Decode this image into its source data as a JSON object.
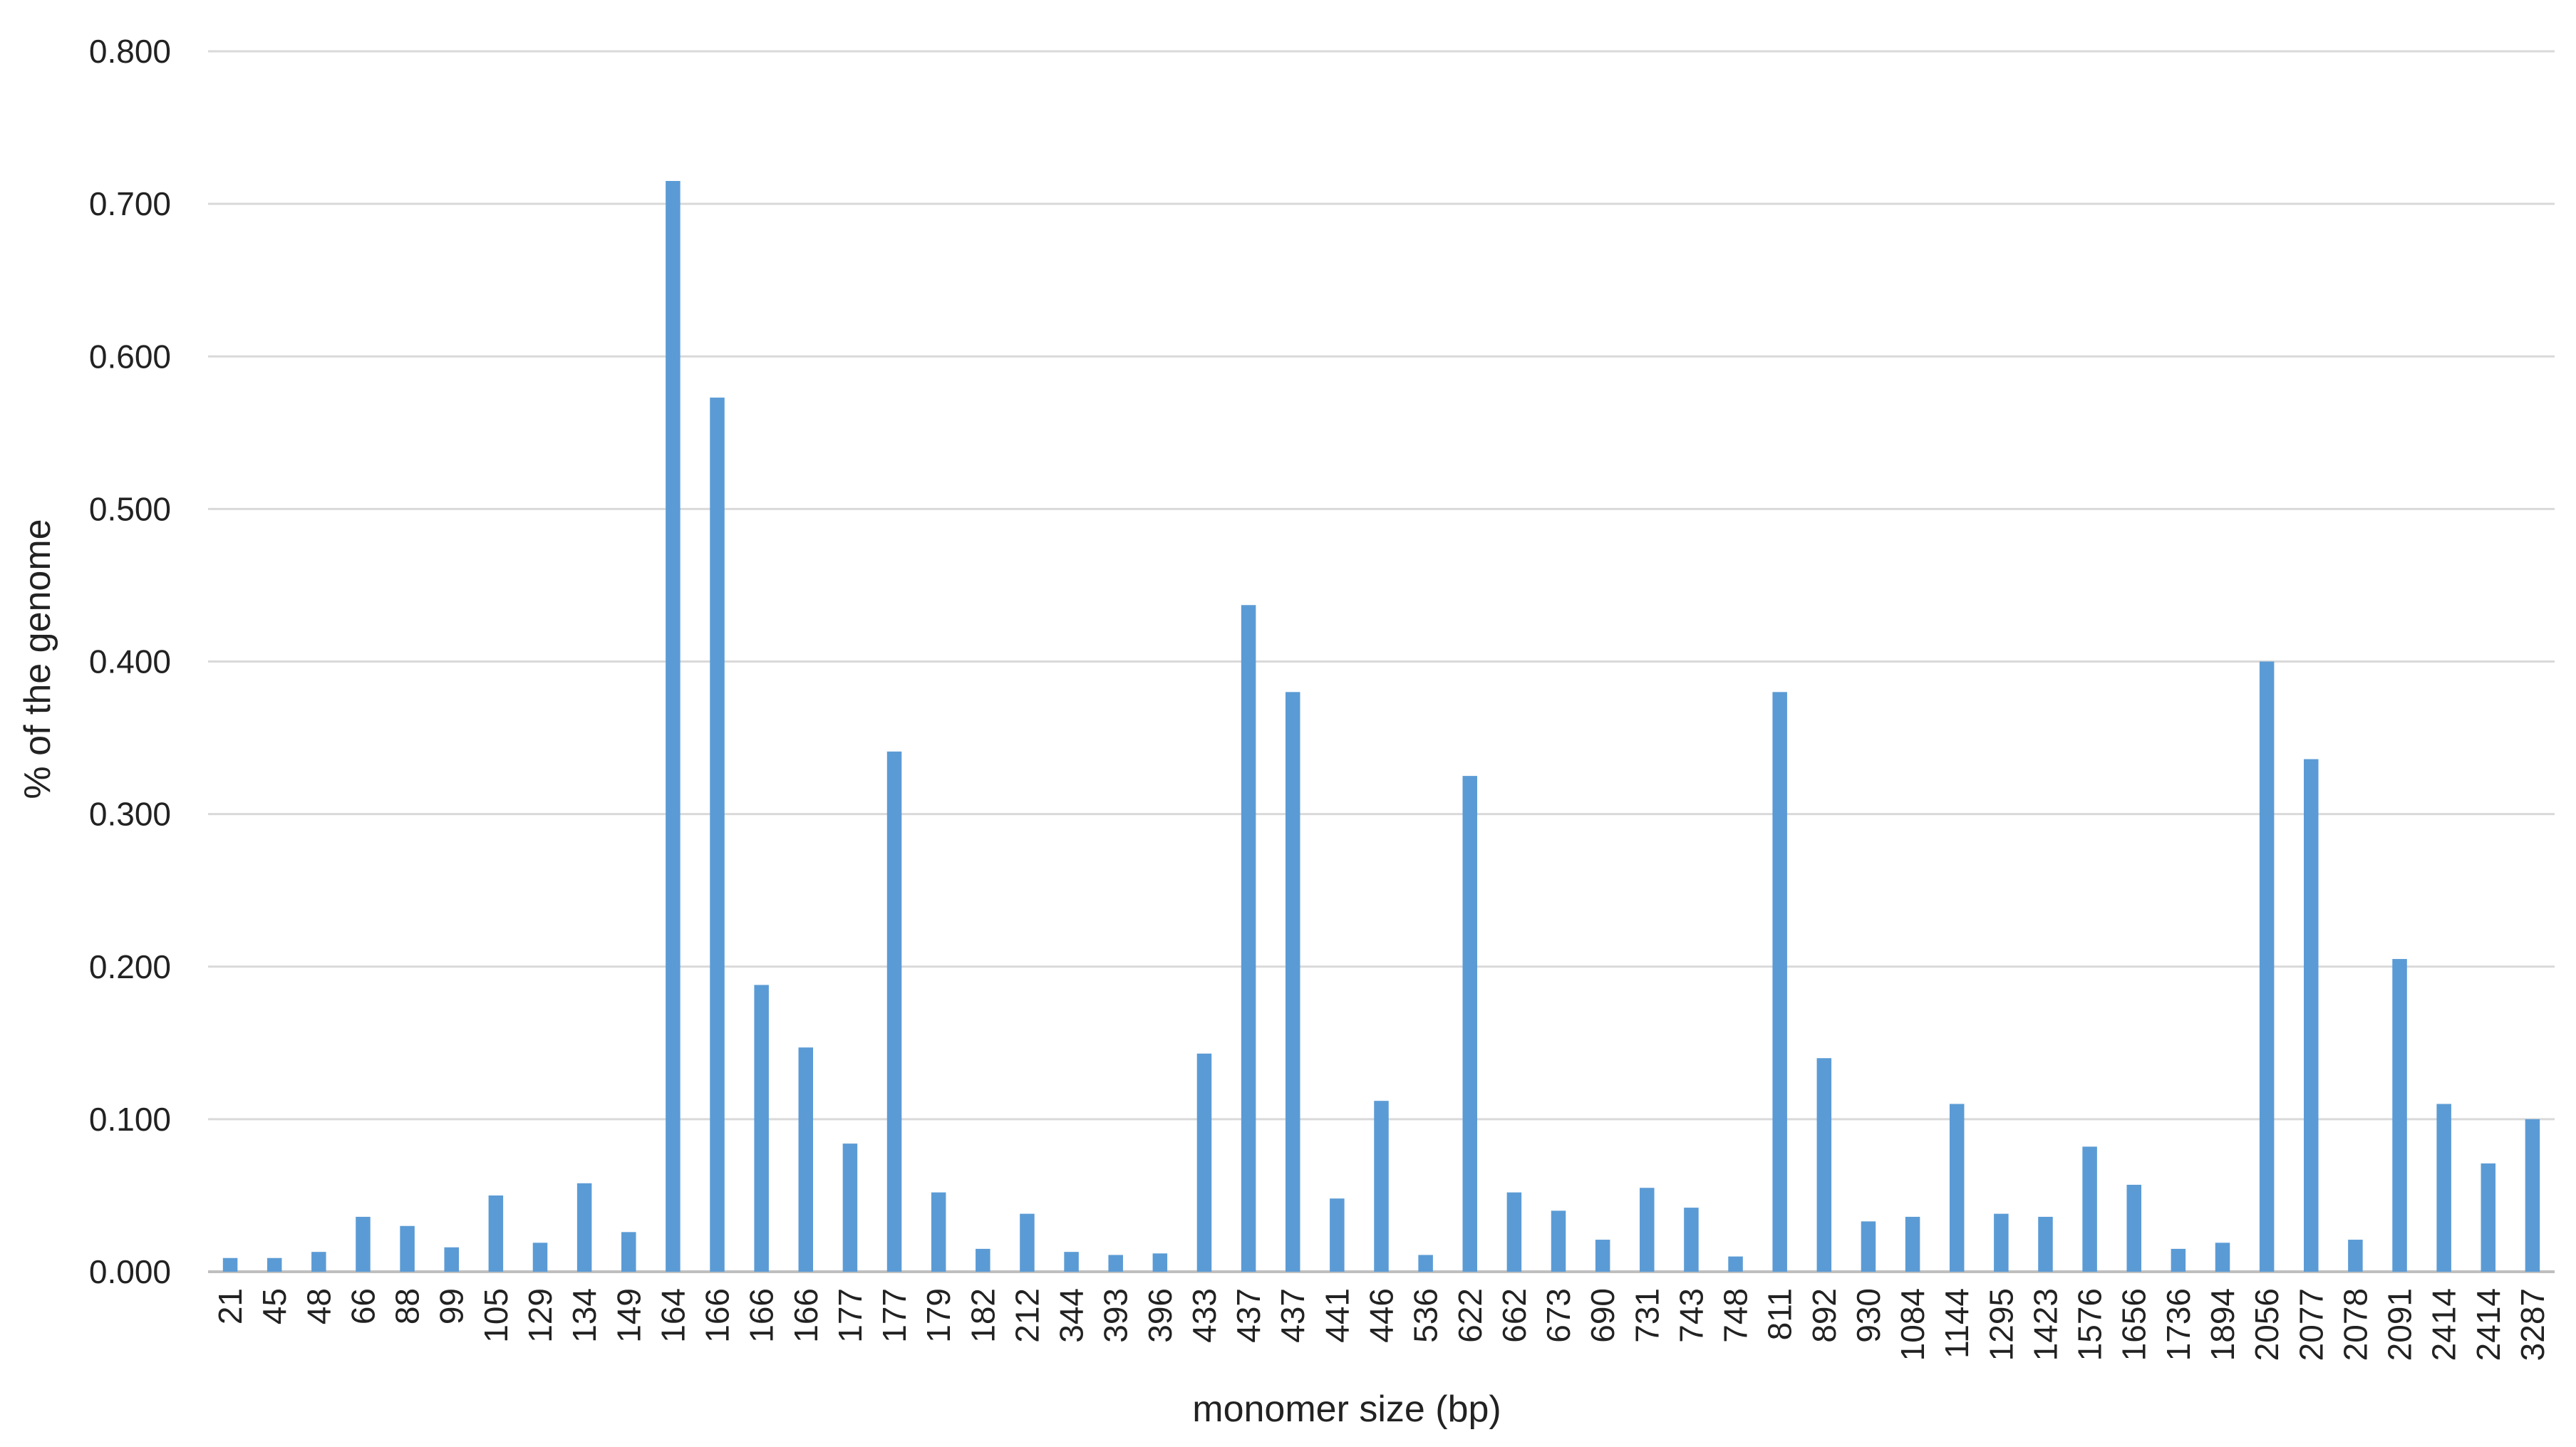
{
  "chart_data": {
    "type": "bar",
    "title": "",
    "xlabel": "monomer size (bp)",
    "ylabel": "% of the genome",
    "ylim": [
      0,
      0.8
    ],
    "yticks": [
      "0.000",
      "0.100",
      "0.200",
      "0.300",
      "0.400",
      "0.500",
      "0.600",
      "0.700",
      "0.800"
    ],
    "grid": true,
    "legend": "none",
    "bar_color": "#5b9bd5",
    "categories": [
      "21",
      "45",
      "48",
      "66",
      "88",
      "99",
      "105",
      "129",
      "134",
      "149",
      "164",
      "166",
      "166",
      "166",
      "177",
      "177",
      "179",
      "182",
      "212",
      "344",
      "393",
      "396",
      "433",
      "437",
      "437",
      "441",
      "446",
      "536",
      "622",
      "662",
      "673",
      "690",
      "731",
      "743",
      "748",
      "811",
      "892",
      "930",
      "1084",
      "1144",
      "1295",
      "1423",
      "1576",
      "1656",
      "1736",
      "1894",
      "2056",
      "2077",
      "2078",
      "2091",
      "2414",
      "2414",
      "3287"
    ],
    "values": [
      0.009,
      0.009,
      0.013,
      0.036,
      0.03,
      0.016,
      0.05,
      0.019,
      0.058,
      0.026,
      0.715,
      0.573,
      0.188,
      0.147,
      0.084,
      0.341,
      0.052,
      0.015,
      0.038,
      0.013,
      0.011,
      0.012,
      0.143,
      0.437,
      0.38,
      0.048,
      0.112,
      0.011,
      0.325,
      0.052,
      0.04,
      0.021,
      0.055,
      0.042,
      0.01,
      0.38,
      0.14,
      0.033,
      0.036,
      0.11,
      0.038,
      0.036,
      0.082,
      0.057,
      0.015,
      0.019,
      0.4,
      0.336,
      0.021,
      0.205,
      0.11,
      0.071,
      0.1
    ]
  }
}
